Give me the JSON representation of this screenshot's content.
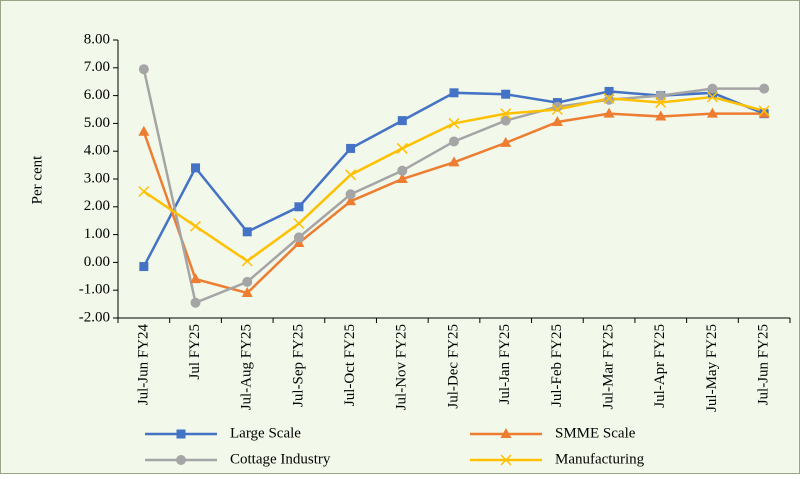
{
  "chart_data": {
    "type": "line",
    "y_label": "Per cent",
    "categories": [
      "Jul-Jun FY24",
      "Jul FY25",
      "Jul-Aug FY25",
      "Jul-Sep FY25",
      "Jul-Oct FY25",
      "Jul-Nov FY25",
      "Jul-Dec FY25",
      "Jul-Jan FY25",
      "Jul-Feb FY25",
      "Jul-Mar FY25",
      "Jul-Apr FY25",
      "Jul-May FY25",
      "Jul-Jun FY25"
    ],
    "series": [
      {
        "name": "Large Scale",
        "color": "#4472c4",
        "marker": "square",
        "values": [
          -0.15,
          3.4,
          1.1,
          2.0,
          4.1,
          5.1,
          6.1,
          6.05,
          5.75,
          6.15,
          6.0,
          6.1,
          5.35
        ]
      },
      {
        "name": "SMME Scale",
        "color": "#ed7d31",
        "marker": "triangle",
        "values": [
          4.7,
          -0.6,
          -1.1,
          0.7,
          2.2,
          3.0,
          3.6,
          4.3,
          5.05,
          5.35,
          5.25,
          5.35,
          5.35
        ]
      },
      {
        "name": "Cottage Industry",
        "color": "#a5a5a5",
        "marker": "circle",
        "values": [
          6.95,
          -1.45,
          -0.7,
          0.9,
          2.45,
          3.3,
          4.35,
          5.1,
          5.6,
          5.85,
          6.0,
          6.25,
          6.25
        ]
      },
      {
        "name": "Manufacturing",
        "color": "#ffc000",
        "marker": "x",
        "values": [
          2.55,
          1.3,
          0.05,
          1.4,
          3.15,
          4.1,
          5.0,
          5.35,
          5.5,
          5.9,
          5.75,
          5.95,
          5.45
        ]
      }
    ],
    "ylim": [
      -2,
      8
    ],
    "yticks": [
      {
        "value": -2,
        "label": "-2.00"
      },
      {
        "value": -1,
        "label": "-1.00"
      },
      {
        "value": 0,
        "label": "0.00"
      },
      {
        "value": 1,
        "label": "1.00"
      },
      {
        "value": 2,
        "label": "2.00"
      },
      {
        "value": 3,
        "label": "3.00"
      },
      {
        "value": 4,
        "label": "4.00"
      },
      {
        "value": 5,
        "label": "5.00"
      },
      {
        "value": 6,
        "label": "6.00"
      },
      {
        "value": 7,
        "label": "7.00"
      },
      {
        "value": 8,
        "label": "8.00"
      }
    ],
    "grid": false,
    "legend": "bottom"
  }
}
